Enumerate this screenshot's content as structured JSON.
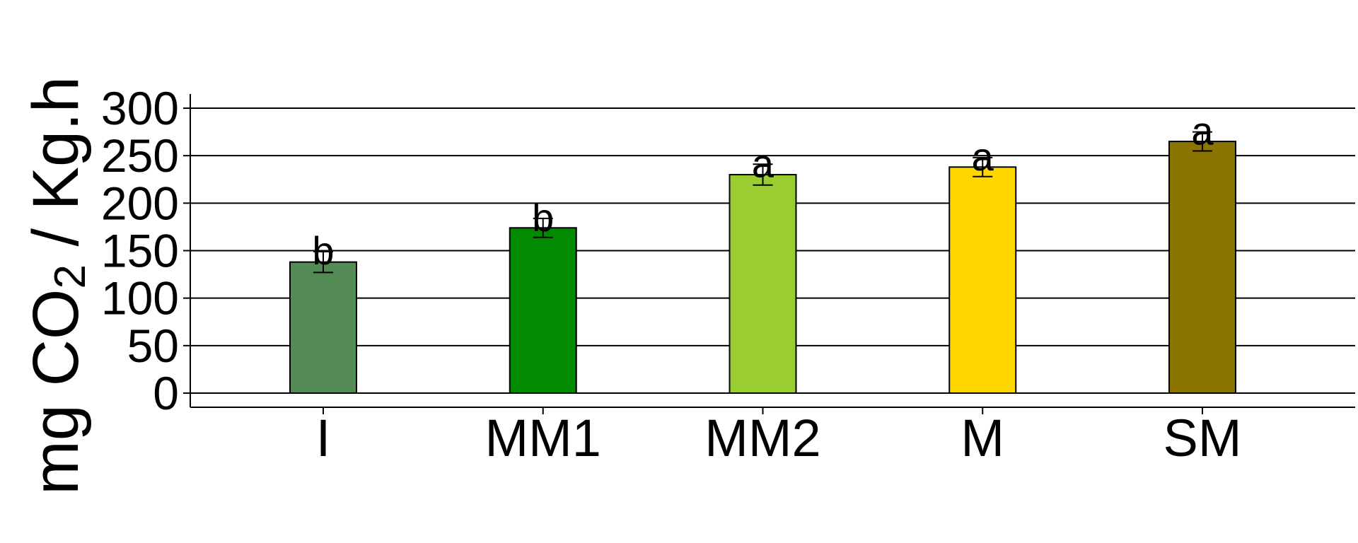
{
  "chart_data": {
    "type": "bar",
    "categories": [
      "I",
      "MM1",
      "MM2",
      "M",
      "SM"
    ],
    "values": [
      138,
      174,
      230,
      238,
      265
    ],
    "errors": [
      11,
      10,
      11,
      10,
      10
    ],
    "significance_letters": [
      "b",
      "b",
      "a",
      "a",
      "a"
    ],
    "colors": [
      "#548B54",
      "#008B00",
      "#9ACD32",
      "#FFD700",
      "#8B7500"
    ],
    "ylabel": {
      "prefix": "mg  CO",
      "subscript": "2",
      "suffix": " / Kg.h"
    },
    "xlabel": "",
    "ylim": [
      0,
      300
    ],
    "yticks": [
      "0",
      "50",
      "100",
      "150",
      "200",
      "250",
      "300"
    ],
    "grid": "horizontal"
  }
}
